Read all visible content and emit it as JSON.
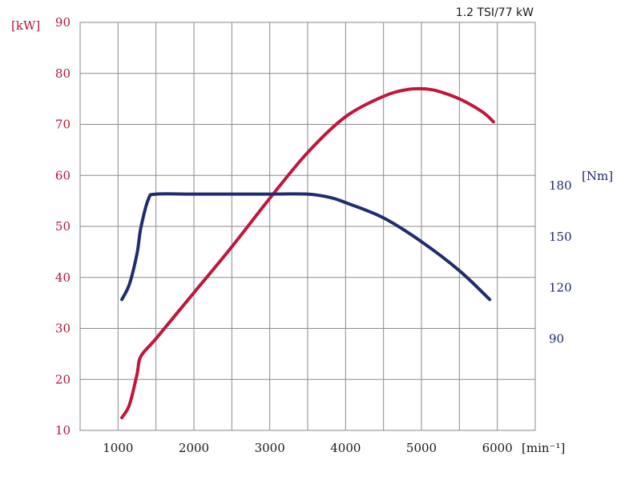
{
  "chart_data": {
    "type": "line",
    "title": "1.2 TSI/77 kW",
    "xlabel": "[min⁻¹]",
    "ylabel": "[kW]",
    "ylabel_right": "[Nm]",
    "x_ticks": [
      "1000",
      "2000",
      "3000",
      "4000",
      "5000",
      "6000"
    ],
    "y_ticks": [
      "10",
      "20",
      "30",
      "40",
      "50",
      "60",
      "70",
      "80",
      "90"
    ],
    "y_right_ticks": [
      "90",
      "120",
      "150",
      "180"
    ],
    "xlim": [
      500,
      6500
    ],
    "ylim": [
      10,
      90
    ],
    "y_right_ticks_values": [
      90,
      120,
      150,
      180
    ],
    "grid": true,
    "series": [
      {
        "name": "kW",
        "axis": "left",
        "color": "#c0163b",
        "x": [
          1050,
          1150,
          1250,
          1300,
          1500,
          2000,
          2500,
          3000,
          3500,
          4000,
          4500,
          4800,
          5000,
          5200,
          5500,
          5800,
          5950
        ],
        "y": [
          12.5,
          15,
          21,
          24.5,
          28,
          37,
          46,
          55.5,
          64.5,
          71.5,
          75.5,
          76.8,
          77,
          76.6,
          75,
          72.5,
          70.5
        ]
      },
      {
        "name": "Nm",
        "axis": "right",
        "color": "#1f2d6e",
        "x": [
          1050,
          1150,
          1250,
          1300,
          1400,
          1500,
          2000,
          3000,
          3500,
          3800,
          4000,
          4500,
          5000,
          5500,
          5900
        ],
        "y": [
          113,
          122,
          140,
          155,
          172,
          175,
          175,
          175,
          175,
          173,
          170,
          161,
          147,
          130,
          113
        ]
      }
    ]
  }
}
